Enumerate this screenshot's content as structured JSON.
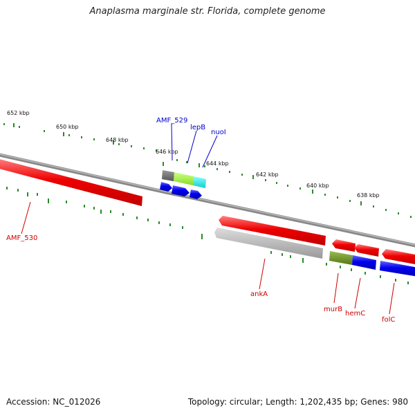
{
  "header": {
    "title": "Anaplasma marginale str. Florida, complete genome"
  },
  "footer": {
    "accession": "Accession: NC_012026",
    "stats": "Topology: circular; Length: 1,202,435 bp; Genes: 980"
  },
  "ruler": {
    "ticks": [
      "652 kbp",
      "650 kbp",
      "648 kbp",
      "646 kbp",
      "644 kbp",
      "642 kbp",
      "640 kbp",
      "638 kbp"
    ]
  },
  "genes": {
    "amf_529": "AMF_529",
    "lepb": "lepB",
    "nuol": "nuoI",
    "amf_530": "AMF_530",
    "anka": "ankA",
    "murb": "murB",
    "hemc": "hemC",
    "folc": "folC"
  },
  "colors": {
    "forward_label": "#0000cc",
    "reverse_label": "#cc0000",
    "gene_red": "#ee0000",
    "gene_blue": "#0000ee",
    "gene_gray": "#bbbbbb",
    "gene_green": "#99ee33",
    "gene_cyan": "#22dddd",
    "gene_olive": "#668822",
    "tick_green": "#2a8a2a",
    "backbone": "#888888"
  }
}
